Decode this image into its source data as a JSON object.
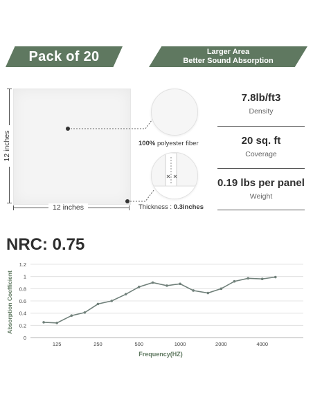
{
  "banners": {
    "left": "Pack of 20",
    "right_line1": "Larger Area",
    "right_line2": "Better Sound Absorption"
  },
  "panel": {
    "height_label": "12 inches",
    "width_label": "12 inches"
  },
  "callouts": {
    "fiber_bold": "100%",
    "fiber_text": " polyester fiber",
    "thickness_text": "Thickness : ",
    "thickness_bold": "0.3inches"
  },
  "specs": [
    {
      "value": "7.8lb/ft3",
      "label": "Density"
    },
    {
      "value": "20 sq. ft",
      "label": "Coverage"
    },
    {
      "value": "0.19 lbs per panel",
      "label": "Weight"
    }
  ],
  "nrc": "NRC: 0.75",
  "colors": {
    "banner": "#5f7860",
    "line": "#70807a"
  },
  "chart_data": {
    "type": "line",
    "xlabel": "Frequency(HZ)",
    "ylabel": "Absorption Coefficient",
    "ylim": [
      0,
      1.2
    ],
    "yticks": [
      "0",
      "0.2",
      "0.4",
      "0.6",
      "0.8",
      "1",
      "1.2"
    ],
    "xtick_labels": [
      "125",
      "250",
      "500",
      "1000",
      "2000",
      "4000"
    ],
    "grid": "horizontal",
    "points": [
      {
        "f": 100,
        "y": 0.25
      },
      {
        "f": 125,
        "y": 0.24
      },
      {
        "f": 160,
        "y": 0.36
      },
      {
        "f": 200,
        "y": 0.41
      },
      {
        "f": 250,
        "y": 0.55
      },
      {
        "f": 315,
        "y": 0.6
      },
      {
        "f": 400,
        "y": 0.71
      },
      {
        "f": 500,
        "y": 0.83
      },
      {
        "f": 630,
        "y": 0.9
      },
      {
        "f": 800,
        "y": 0.85
      },
      {
        "f": 1000,
        "y": 0.88
      },
      {
        "f": 1250,
        "y": 0.77
      },
      {
        "f": 1600,
        "y": 0.73
      },
      {
        "f": 2000,
        "y": 0.8
      },
      {
        "f": 2500,
        "y": 0.92
      },
      {
        "f": 3150,
        "y": 0.97
      },
      {
        "f": 4000,
        "y": 0.96
      },
      {
        "f": 5000,
        "y": 0.99
      }
    ]
  }
}
